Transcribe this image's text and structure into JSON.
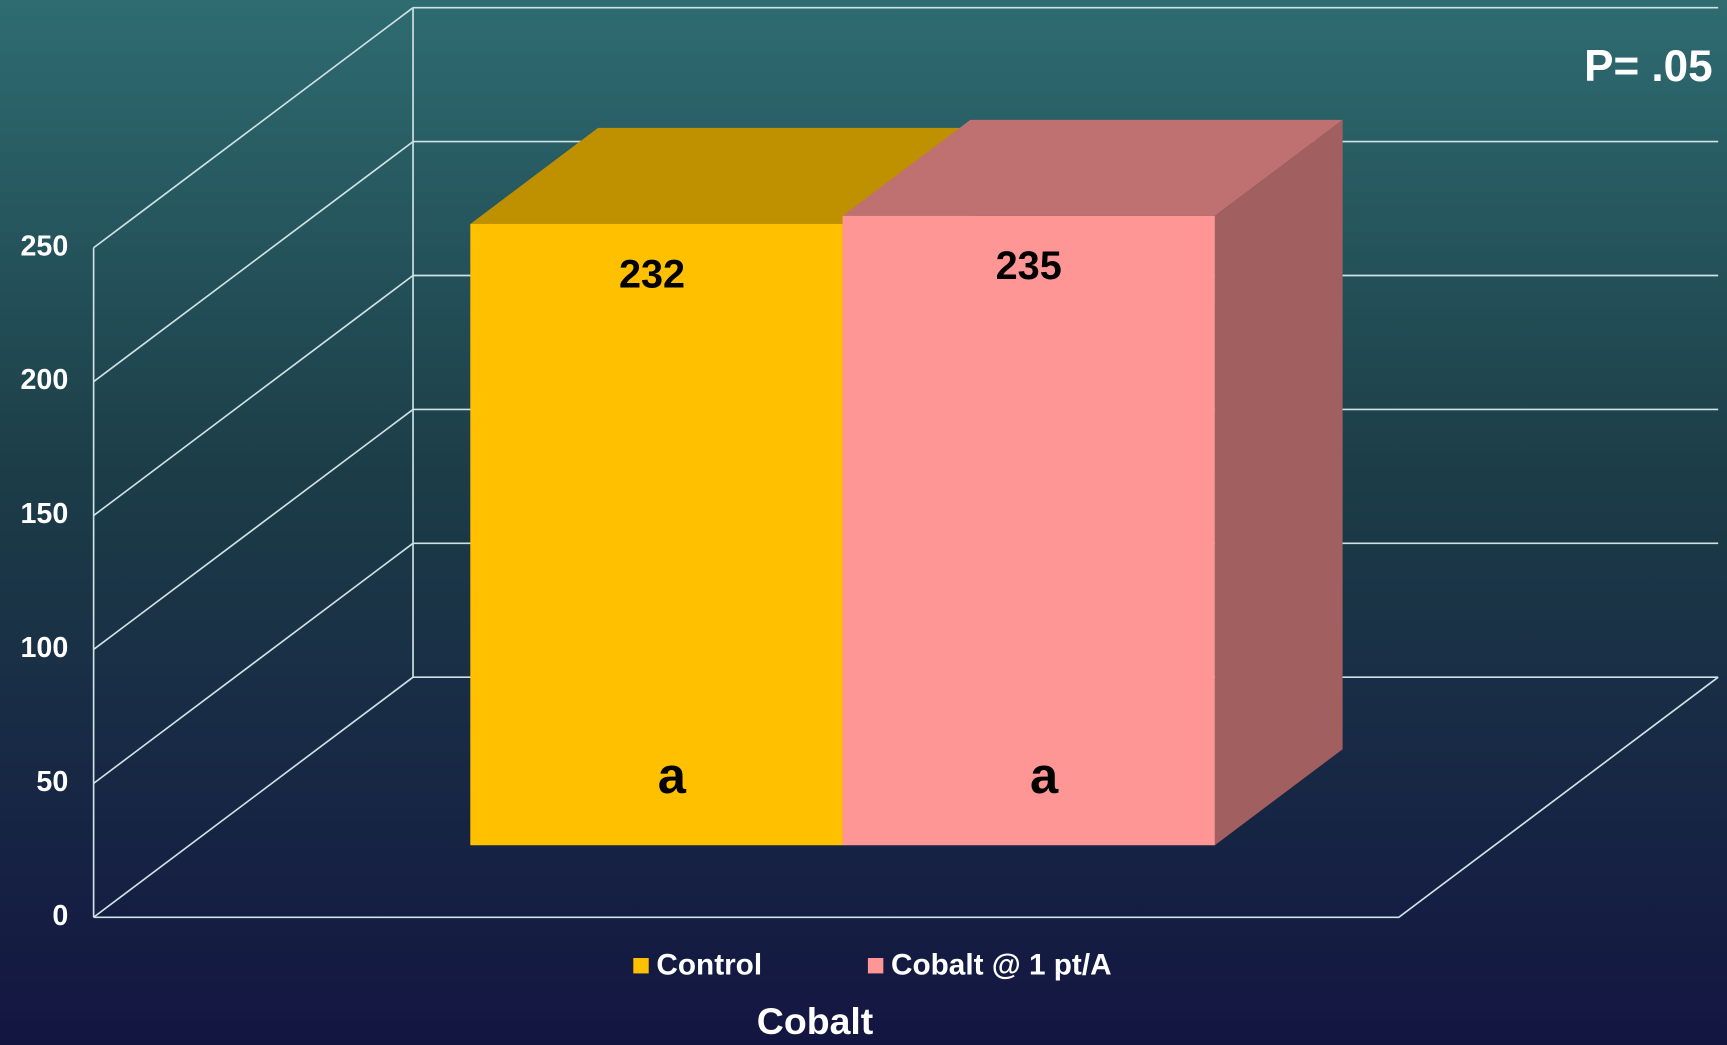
{
  "chart_data": {
    "type": "bar3d",
    "categories": [
      "Cobalt"
    ],
    "series": [
      {
        "name": "Control",
        "color": "#ffc000",
        "values": [
          232
        ],
        "letter": "a"
      },
      {
        "name": "Cobalt @ 1 pt/A",
        "color": "#ff9696",
        "values": [
          235
        ],
        "letter": "a"
      }
    ],
    "annotation": "P= .05",
    "ylim": [
      0,
      250
    ],
    "yticks": [
      0,
      50,
      100,
      150,
      200,
      250
    ],
    "grid": true,
    "legend": "bottom"
  }
}
